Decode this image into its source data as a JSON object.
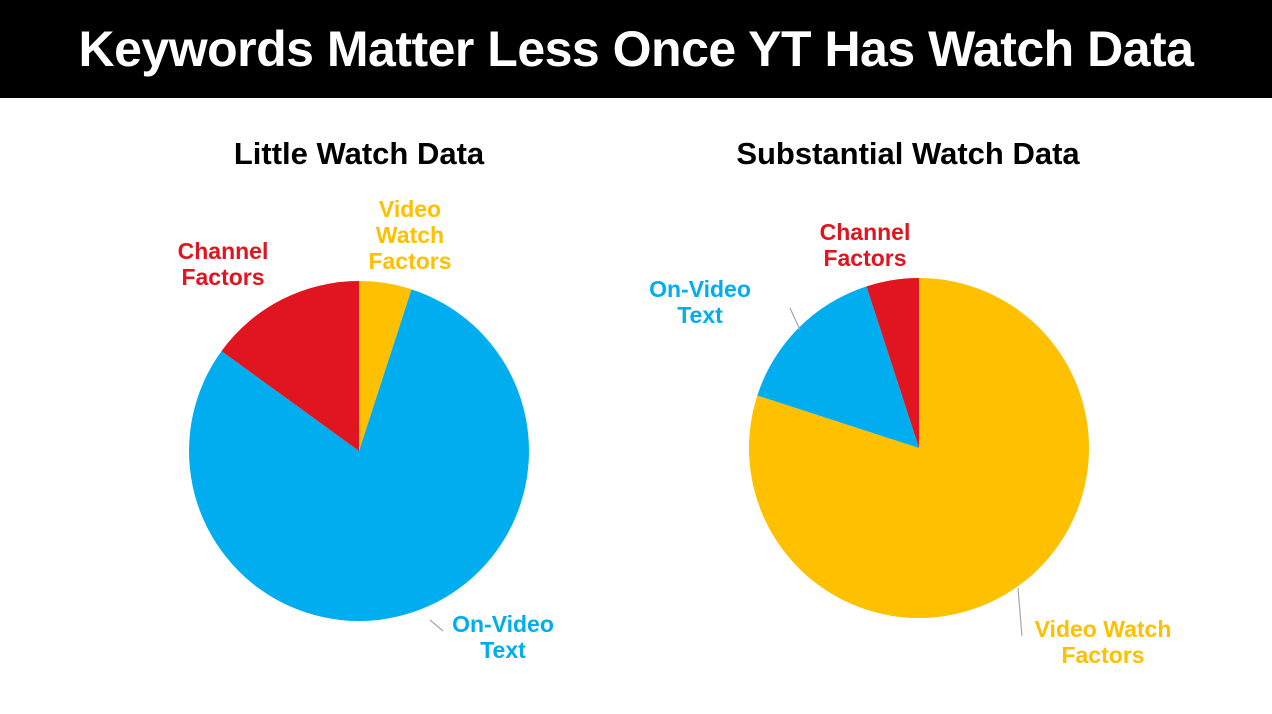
{
  "header": {
    "title": "Keywords Matter Less Once YT Has Watch Data"
  },
  "colors": {
    "channel_factors": "#E0151F",
    "on_video_text": "#00AEEF",
    "video_watch_factors": "#FFC000",
    "banner": "#000000",
    "leader_line": "#A6A6A6"
  },
  "chart_data": [
    {
      "type": "pie",
      "title": "Little Watch Data",
      "slices": [
        {
          "label": [
            "Video",
            "Watch",
            "Factors"
          ],
          "value": 5,
          "color": "#FFC000"
        },
        {
          "label": [
            "On-Video",
            "Text"
          ],
          "value": 80,
          "color": "#00AEEF"
        },
        {
          "label": [
            "Channel",
            "Factors"
          ],
          "value": 15,
          "color": "#E0151F"
        }
      ]
    },
    {
      "type": "pie",
      "title": "Substantial Watch Data",
      "slices": [
        {
          "label": [
            "Video Watch",
            "Factors"
          ],
          "value": 80,
          "color": "#FFC000"
        },
        {
          "label": [
            "On-Video",
            "Text"
          ],
          "value": 15,
          "color": "#00AEEF"
        },
        {
          "label": [
            "Channel",
            "Factors"
          ],
          "value": 5,
          "color": "#E0151F"
        }
      ]
    }
  ]
}
